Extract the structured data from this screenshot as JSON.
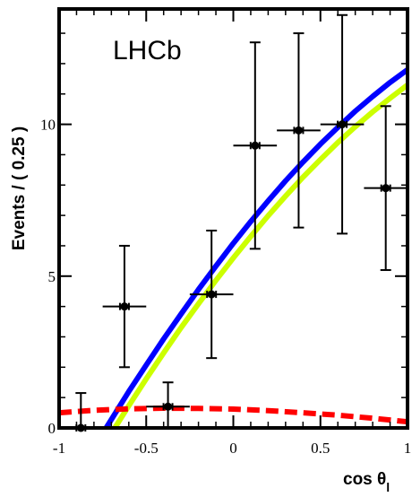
{
  "chart_data": {
    "type": "scatter",
    "annotation": "LHCb",
    "xlabel_text": "cos θ",
    "xlabel_subscript": "l",
    "ylabel": "Events / ( 0.25 )",
    "xlim": [
      -1,
      1
    ],
    "ylim": [
      0,
      13.8
    ],
    "x_ticks": [
      "-1",
      "-0.5",
      "0",
      "0.5",
      "1"
    ],
    "y_ticks": [
      "0",
      "5",
      "10"
    ],
    "y_tick_values": [
      0,
      5,
      10
    ],
    "grid": false,
    "series": [
      {
        "kind": "errorbar",
        "color": "#000000",
        "points": [
          {
            "x": -0.875,
            "y": 0,
            "xerr": 0.125,
            "yerr_low": 0,
            "yerr_high": 1.15
          },
          {
            "x": -0.625,
            "y": 4.0,
            "xerr": 0.125,
            "yerr_low": 2.0,
            "yerr_high": 2.0
          },
          {
            "x": -0.375,
            "y": 0.7,
            "xerr": 0.125,
            "yerr_low": 0.7,
            "yerr_high": 0.8
          },
          {
            "x": -0.125,
            "y": 4.4,
            "xerr": 0.125,
            "yerr_low": 2.1,
            "yerr_high": 2.1
          },
          {
            "x": 0.125,
            "y": 9.3,
            "xerr": 0.125,
            "yerr_low": 3.4,
            "yerr_high": 3.4
          },
          {
            "x": 0.375,
            "y": 9.8,
            "xerr": 0.125,
            "yerr_low": 3.2,
            "yerr_high": 3.2
          },
          {
            "x": 0.625,
            "y": 10.0,
            "xerr": 0.125,
            "yerr_low": 3.6,
            "yerr_high": 3.6
          },
          {
            "x": 0.875,
            "y": 7.9,
            "xerr": 0.125,
            "yerr_low": 2.7,
            "yerr_high": 2.7
          }
        ]
      },
      {
        "kind": "line",
        "color": "#0000ff",
        "x": [
          -0.73,
          -0.6,
          -0.5,
          -0.4,
          -0.3,
          -0.2,
          -0.1,
          0.0,
          0.1,
          0.2,
          0.3,
          0.4,
          0.5,
          0.6,
          0.7,
          0.8,
          0.9,
          1.0
        ],
        "y": [
          0.0,
          1.2,
          2.07,
          2.93,
          3.75,
          4.56,
          5.33,
          6.08,
          6.8,
          7.48,
          8.14,
          8.76,
          9.35,
          9.9,
          10.43,
          10.92,
          11.38,
          11.8
        ]
      },
      {
        "kind": "line",
        "color": "#ccff00",
        "x": [
          -0.68,
          -0.6,
          -0.5,
          -0.4,
          -0.3,
          -0.2,
          -0.1,
          0.0,
          0.1,
          0.2,
          0.3,
          0.4,
          0.5,
          0.6,
          0.7,
          0.8,
          0.9,
          1.0
        ],
        "y": [
          0.0,
          0.73,
          1.62,
          2.47,
          3.3,
          4.09,
          4.86,
          5.6,
          6.31,
          6.99,
          7.64,
          8.26,
          8.84,
          9.4,
          9.92,
          10.41,
          10.86,
          11.3
        ]
      },
      {
        "kind": "dashed-line",
        "color": "#ff0000",
        "x": [
          -1.0,
          -0.8,
          -0.6,
          -0.4,
          -0.2,
          0.0,
          0.2,
          0.4,
          0.6,
          0.8,
          1.0
        ],
        "y": [
          0.5,
          0.58,
          0.63,
          0.65,
          0.64,
          0.62,
          0.57,
          0.5,
          0.42,
          0.32,
          0.2
        ]
      }
    ]
  }
}
